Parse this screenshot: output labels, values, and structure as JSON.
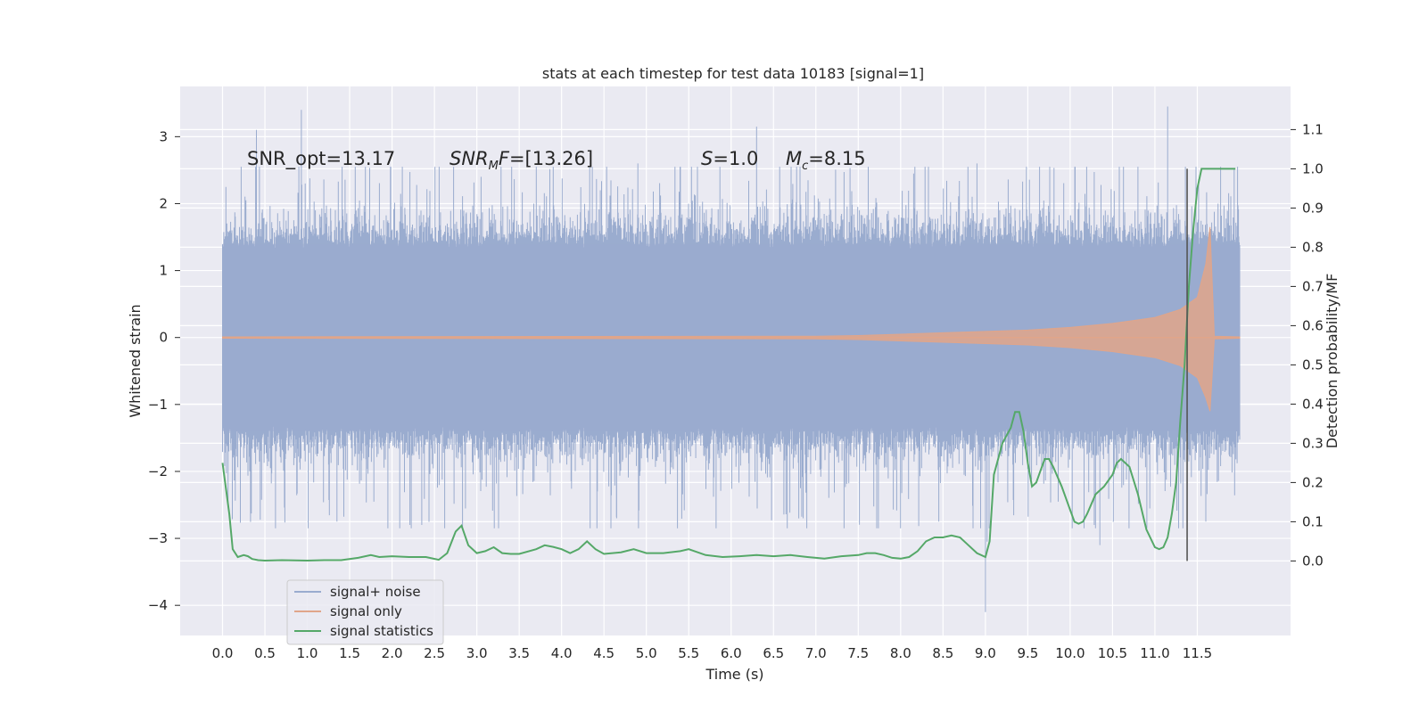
{
  "chart_data": {
    "type": "line",
    "title": "stats at each timestep for test data 10183 [signal=1]",
    "xlabel": "Time (s)",
    "ylabel": "Whitened strain",
    "y2label": "Detection probability/MF",
    "xlim": [
      -0.5,
      12.6
    ],
    "ylim": [
      -4.45,
      3.75
    ],
    "y2lim": [
      -0.19,
      1.21
    ],
    "x_ticks": [
      0.0,
      0.5,
      1.0,
      1.5,
      2.0,
      2.5,
      3.0,
      3.5,
      4.0,
      4.5,
      5.0,
      5.5,
      6.0,
      6.5,
      7.0,
      7.5,
      8.0,
      8.5,
      9.0,
      9.5,
      10.0,
      10.5,
      11.0,
      11.5
    ],
    "x_tick_labels": [
      "0.0",
      "0.5",
      "1.0",
      "1.5",
      "2.0",
      "2.5",
      "3.0",
      "3.5",
      "4.0",
      "4.5",
      "5.0",
      "5.5",
      "6.0",
      "6.5",
      "7.0",
      "7.5",
      "8.0",
      "8.5",
      "9.0",
      "9.5",
      "10.0",
      "10.5",
      "11.0",
      "11.5"
    ],
    "y_ticks": [
      3,
      2,
      1,
      0,
      -1,
      -2,
      -3,
      -4
    ],
    "y_tick_labels": [
      "3",
      "2",
      "1",
      "0",
      "−1",
      "−2",
      "−3",
      "−4"
    ],
    "y2_ticks": [
      1.1,
      1.0,
      0.9,
      0.8,
      0.7,
      0.6,
      0.5,
      0.4,
      0.3,
      0.2,
      0.1,
      0.0
    ],
    "y2_tick_labels": [
      "1.1",
      "1.0",
      "0.9",
      "0.8",
      "0.7",
      "0.6",
      "0.5",
      "0.4",
      "0.3",
      "0.2",
      "0.1",
      "0.0"
    ],
    "grid": true,
    "legend_position": "lower-left",
    "annotations": {
      "snr_opt": "SNR_opt=13.17",
      "snr_mf_main": "SNR",
      "snr_mf_sub": "M",
      "snr_mf_rest": "F=[13.26]",
      "s_main": "S",
      "s_rest": "=1.0",
      "mc_main": "M",
      "mc_sub": "c",
      "mc_rest": "=8.15"
    },
    "vline_x": 11.38,
    "vline_y2_range": [
      0.0,
      1.0
    ],
    "series": [
      {
        "name": "signal+ noise",
        "color": "#9aaccf",
        "kind": "noise_band",
        "x_range": [
          0.0,
          12.0
        ],
        "typical_amplitude": 1.4,
        "peak_max": 3.4,
        "peak_min": -4.1
      },
      {
        "name": "signal only",
        "color": "#e0a58a",
        "kind": "chirp_envelope",
        "x": [
          0.0,
          7.0,
          7.5,
          8.0,
          8.5,
          9.0,
          9.5,
          10.0,
          10.5,
          11.0,
          11.3,
          11.5,
          11.6,
          11.65,
          11.7,
          12.0
        ],
        "upper": [
          0.01,
          0.02,
          0.03,
          0.05,
          0.07,
          0.09,
          0.11,
          0.15,
          0.21,
          0.3,
          0.42,
          0.6,
          1.1,
          1.65,
          0.02,
          0.01
        ],
        "lower": [
          -0.01,
          -0.02,
          -0.03,
          -0.05,
          -0.07,
          -0.09,
          -0.11,
          -0.15,
          -0.21,
          -0.3,
          -0.42,
          -0.6,
          -0.9,
          -1.1,
          -0.02,
          -0.01
        ]
      },
      {
        "name": "signal statistics",
        "color": "#55a868",
        "axis": "right",
        "x": [
          0.0,
          0.08,
          0.12,
          0.18,
          0.25,
          0.3,
          0.35,
          0.42,
          0.5,
          0.7,
          1.0,
          1.2,
          1.4,
          1.6,
          1.75,
          1.85,
          2.0,
          2.2,
          2.4,
          2.55,
          2.65,
          2.75,
          2.82,
          2.9,
          3.0,
          3.1,
          3.2,
          3.3,
          3.4,
          3.5,
          3.7,
          3.8,
          3.9,
          4.0,
          4.1,
          4.2,
          4.3,
          4.4,
          4.5,
          4.7,
          4.85,
          5.0,
          5.2,
          5.4,
          5.5,
          5.7,
          5.9,
          6.1,
          6.3,
          6.5,
          6.7,
          6.9,
          7.1,
          7.3,
          7.5,
          7.6,
          7.7,
          7.8,
          7.9,
          8.0,
          8.1,
          8.2,
          8.3,
          8.4,
          8.5,
          8.6,
          8.7,
          8.8,
          8.9,
          9.0,
          9.05,
          9.1,
          9.2,
          9.3,
          9.35,
          9.4,
          9.45,
          9.5,
          9.55,
          9.6,
          9.65,
          9.7,
          9.75,
          9.8,
          9.9,
          10.0,
          10.05,
          10.1,
          10.15,
          10.2,
          10.3,
          10.4,
          10.5,
          10.55,
          10.6,
          10.7,
          10.8,
          10.9,
          11.0,
          11.05,
          11.1,
          11.15,
          11.2,
          11.25,
          11.3,
          11.35,
          11.4,
          11.45,
          11.5,
          11.55,
          11.65,
          11.8,
          11.95
        ],
        "y": [
          0.25,
          0.12,
          0.03,
          0.01,
          0.015,
          0.012,
          0.005,
          0.002,
          0.001,
          0.002,
          0.001,
          0.002,
          0.002,
          0.008,
          0.015,
          0.01,
          0.012,
          0.01,
          0.01,
          0.003,
          0.02,
          0.075,
          0.09,
          0.04,
          0.02,
          0.025,
          0.035,
          0.02,
          0.018,
          0.018,
          0.03,
          0.04,
          0.036,
          0.03,
          0.02,
          0.03,
          0.05,
          0.03,
          0.018,
          0.022,
          0.03,
          0.02,
          0.02,
          0.025,
          0.03,
          0.015,
          0.01,
          0.012,
          0.015,
          0.012,
          0.015,
          0.01,
          0.006,
          0.012,
          0.015,
          0.02,
          0.02,
          0.015,
          0.008,
          0.006,
          0.01,
          0.025,
          0.05,
          0.06,
          0.06,
          0.065,
          0.06,
          0.04,
          0.02,
          0.01,
          0.05,
          0.22,
          0.3,
          0.34,
          0.38,
          0.38,
          0.33,
          0.25,
          0.19,
          0.2,
          0.23,
          0.26,
          0.26,
          0.24,
          0.19,
          0.13,
          0.1,
          0.095,
          0.1,
          0.12,
          0.17,
          0.19,
          0.22,
          0.25,
          0.26,
          0.24,
          0.17,
          0.08,
          0.035,
          0.03,
          0.035,
          0.06,
          0.12,
          0.2,
          0.36,
          0.5,
          0.7,
          0.84,
          0.95,
          1.0,
          1.0,
          1.0,
          1.0
        ]
      }
    ]
  }
}
